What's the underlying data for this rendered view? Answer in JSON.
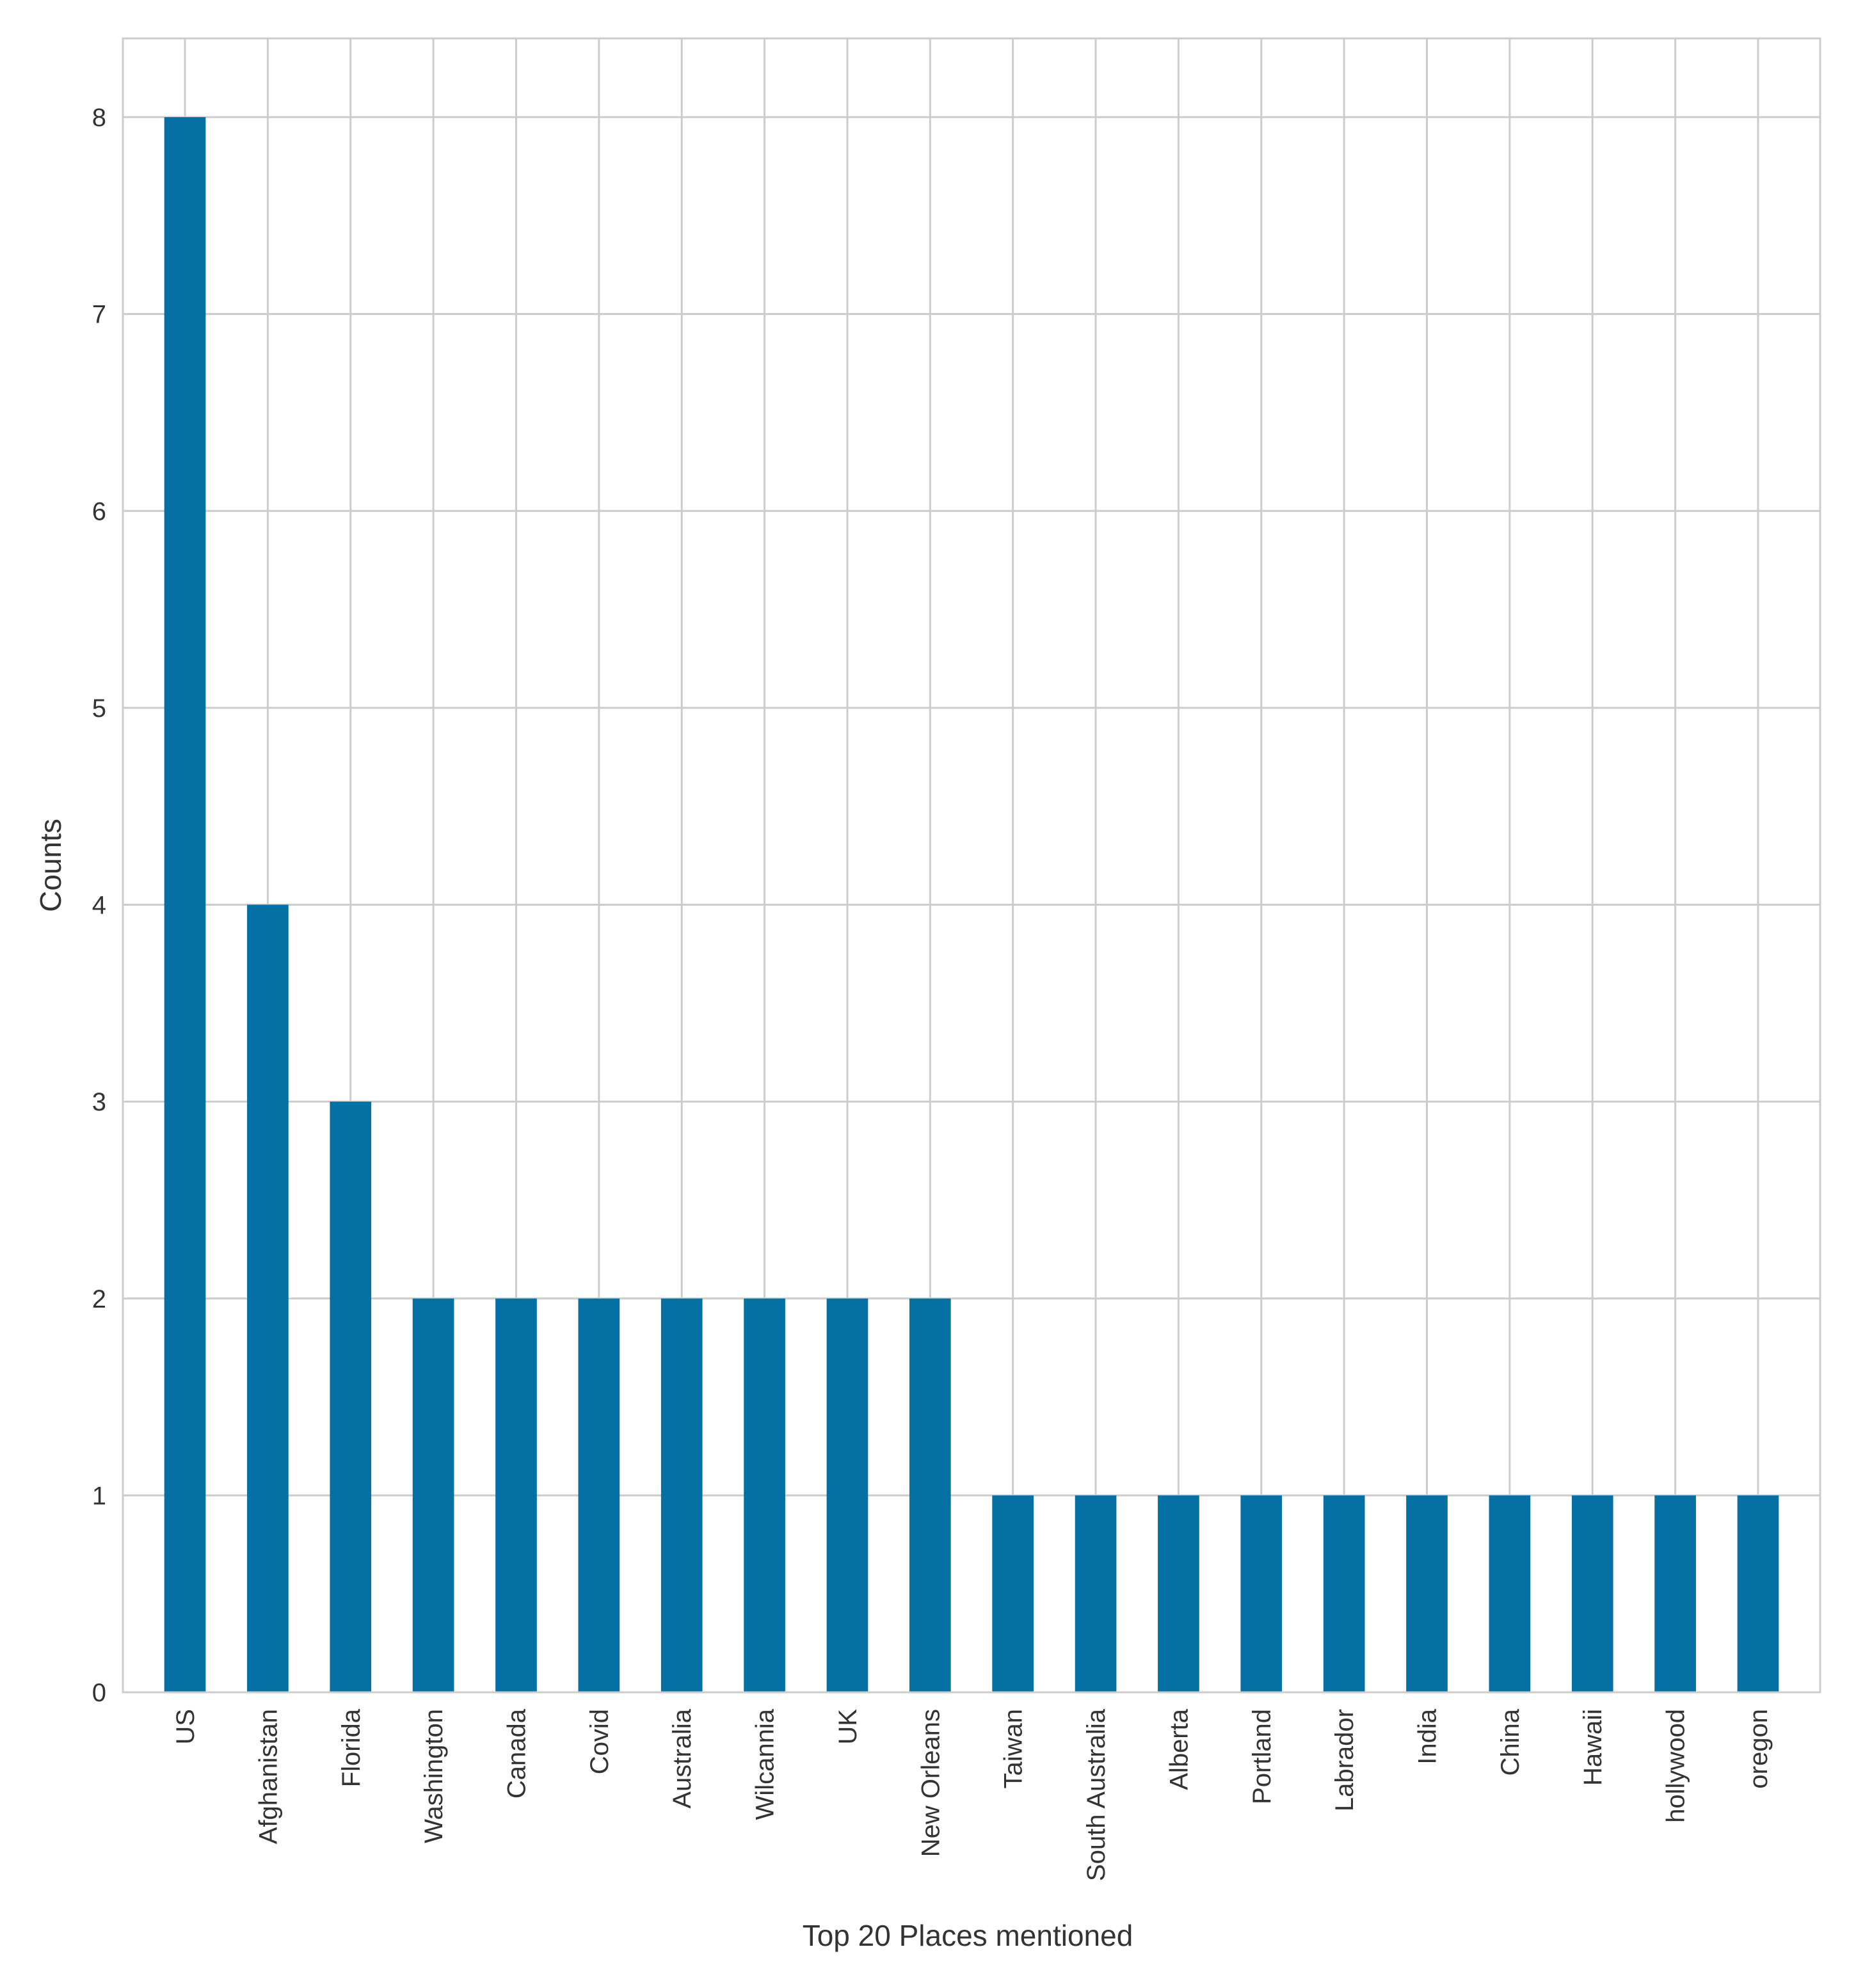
{
  "chart_data": {
    "type": "bar",
    "title": "",
    "xlabel": "Top 20 Places mentioned",
    "ylabel": "Counts",
    "categories": [
      "US",
      "Afghanistan",
      "Florida",
      "Washington",
      "Canada",
      "Covid",
      "Australia",
      "Wilcannia",
      "UK",
      "New Orleans",
      "Taiwan",
      "South Australia",
      "Alberta",
      "Portland",
      "Labrador",
      "India",
      "China",
      "Hawaii",
      "hollywood",
      "oregon"
    ],
    "values": [
      8,
      4,
      3,
      2,
      2,
      2,
      2,
      2,
      2,
      2,
      1,
      1,
      1,
      1,
      1,
      1,
      1,
      1,
      1,
      1
    ],
    "ylim": [
      0,
      8.4
    ],
    "yticks": [
      0,
      1,
      2,
      3,
      4,
      5,
      6,
      7,
      8
    ],
    "grid": true,
    "legend": "none",
    "bar_color": "#0570a3",
    "grid_color": "#cccccc"
  }
}
